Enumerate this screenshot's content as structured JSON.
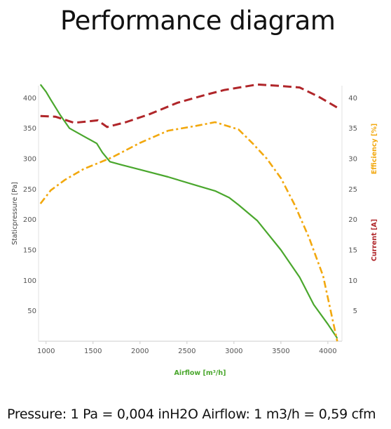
{
  "page": {
    "title": "Performance diagram",
    "footer": "Pressure: 1 Pa = 0,004 inH2O Airflow: 1 m3/h = 0,59 cfm"
  },
  "chart_data": {
    "type": "line",
    "title": "Performance diagram",
    "xlabel": "Airflow [m³/h]",
    "ylabel": "Staticpressure [Pa]",
    "y2label_efficiency": "Efficiency [%]",
    "y2label_current": "Current [A]",
    "xlim": [
      920,
      4150
    ],
    "ylim": [
      0,
      420
    ],
    "y2lim": [
      0,
      42
    ],
    "x_ticks": [
      1000,
      1500,
      2000,
      2500,
      3000,
      3500,
      4000
    ],
    "y_ticks": [
      50,
      100,
      150,
      200,
      250,
      300,
      350,
      400
    ],
    "y2_ticks": [
      5,
      10,
      15,
      20,
      25,
      30,
      35,
      40
    ],
    "grid": false,
    "colors": {
      "pressure": "#4aa72d",
      "efficiency": "#f2a80e",
      "current": "#b0262a",
      "axis_label_x": "#4aa72d",
      "tick_text": "#555555"
    },
    "series": [
      {
        "key": "pressure",
        "axis": "left",
        "style": "solid",
        "x": [
          940,
          1000,
          1050,
          1150,
          1250,
          1400,
          1540,
          1600,
          1680,
          1800,
          2000,
          2300,
          2600,
          2800,
          2950,
          3050,
          3250,
          3500,
          3700,
          3850,
          4000,
          4100
        ],
        "y": [
          422,
          410,
          397,
          372,
          350,
          337,
          325,
          310,
          295,
          290,
          282,
          270,
          256,
          247,
          236,
          224,
          198,
          150,
          105,
          60,
          28,
          5
        ]
      },
      {
        "key": "efficiency",
        "axis": "right",
        "style": "dashdot",
        "x": [
          940,
          1050,
          1200,
          1400,
          1700,
          2000,
          2300,
          2600,
          2800,
          3050,
          3200,
          3350,
          3500,
          3650,
          3800,
          3950,
          4100
        ],
        "y": [
          22.6,
          24.8,
          26.5,
          28.3,
          30.2,
          32.6,
          34.6,
          35.4,
          36.0,
          34.8,
          32.5,
          30.0,
          26.8,
          22.3,
          17.0,
          10.7,
          0
        ]
      },
      {
        "key": "current",
        "axis": "right",
        "style": "dashed",
        "x": [
          940,
          1100,
          1300,
          1550,
          1650,
          1850,
          2100,
          2400,
          2700,
          2900,
          3100,
          3250,
          3450,
          3700,
          3900,
          4100
        ],
        "y": [
          37.0,
          36.9,
          35.9,
          36.3,
          35.2,
          36.0,
          37.3,
          39.2,
          40.5,
          41.3,
          41.8,
          42.2,
          42.0,
          41.7,
          40.2,
          38.4
        ]
      }
    ]
  }
}
